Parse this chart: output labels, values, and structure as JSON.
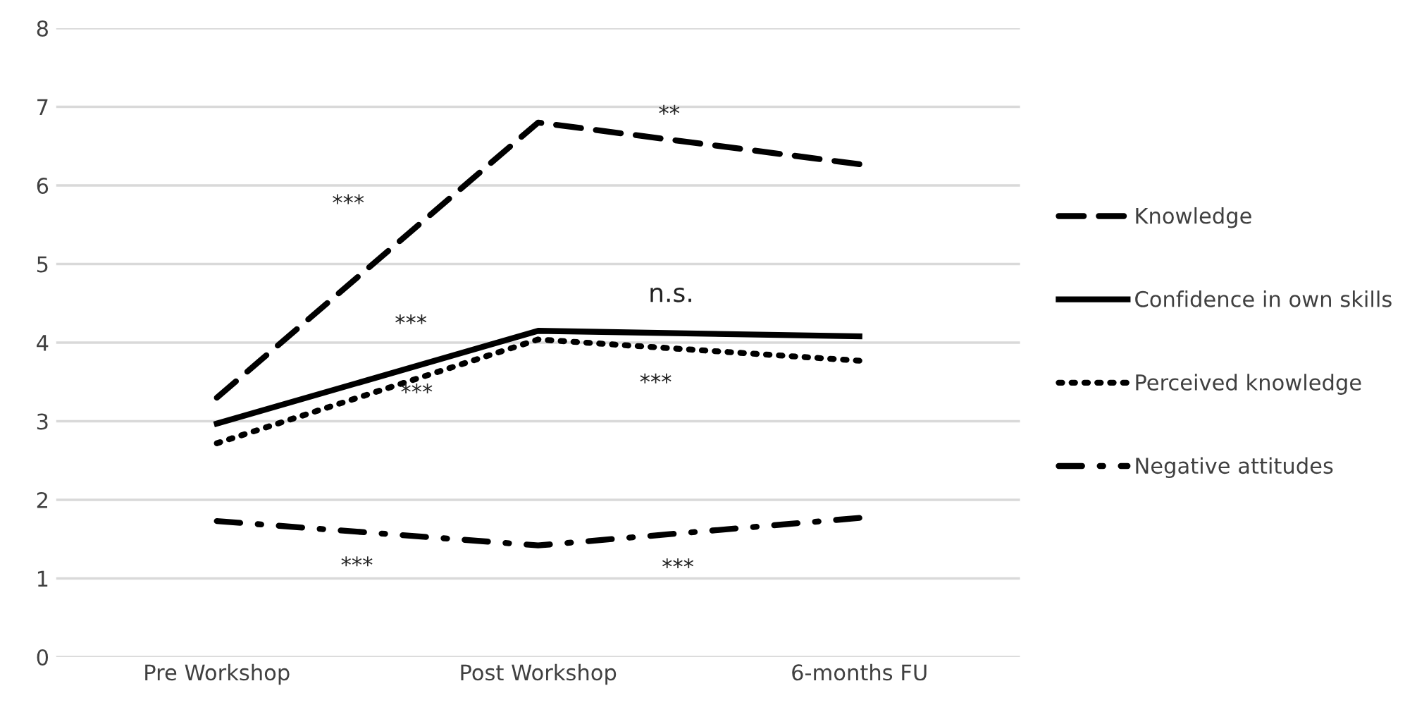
{
  "chart_data": {
    "type": "line",
    "categories": [
      "Pre Workshop",
      "Post Workshop",
      "6-months FU"
    ],
    "series": [
      {
        "name": "Knowledge",
        "color": "#000000",
        "line_style": "dashed",
        "values": [
          3.3,
          6.8,
          6.27
        ]
      },
      {
        "name": "Confidence in own skills",
        "color": "#000000",
        "line_style": "solid",
        "values": [
          2.97,
          4.15,
          4.08
        ]
      },
      {
        "name": "Perceived knowledge",
        "color": "#000000",
        "line_style": "dotted",
        "values": [
          2.72,
          4.04,
          3.77
        ]
      },
      {
        "name": "Negative attitudes",
        "color": "#000000",
        "line_style": "dashdot",
        "values": [
          1.73,
          1.42,
          1.77
        ]
      }
    ],
    "ylim": [
      0,
      8
    ],
    "yticks": [
      0,
      1,
      2,
      3,
      4,
      5,
      6,
      7,
      8
    ],
    "grid": "y",
    "legend": "right",
    "marker": "none",
    "annotations": [
      "***",
      "***",
      "***",
      "***",
      "**",
      "n.s.",
      "***",
      "***"
    ]
  }
}
